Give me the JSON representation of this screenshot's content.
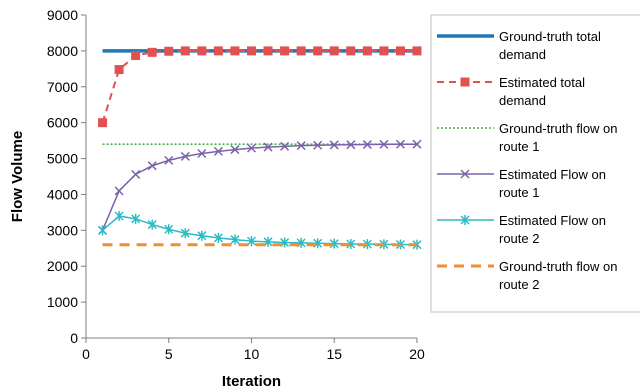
{
  "chart_data": {
    "type": "line",
    "title": "",
    "xlabel": "Iteration",
    "ylabel": "Flow Volume",
    "xlim": [
      0,
      20
    ],
    "ylim": [
      0,
      9000
    ],
    "xticks": [
      0,
      5,
      10,
      15,
      20
    ],
    "yticks": [
      0,
      1000,
      2000,
      3000,
      4000,
      5000,
      6000,
      7000,
      8000,
      9000
    ],
    "grid": false,
    "legend_position": "right",
    "x": [
      1,
      2,
      3,
      4,
      5,
      6,
      7,
      8,
      9,
      10,
      11,
      12,
      13,
      14,
      15,
      16,
      17,
      18,
      19,
      20
    ],
    "series": [
      {
        "name": "Ground-truth total demand",
        "legend_lines": [
          "Ground-truth total",
          "demand"
        ],
        "color": "#1f77b4",
        "style": "solid-thick",
        "marker": "none",
        "values": [
          8000,
          8000,
          8000,
          8000,
          8000,
          8000,
          8000,
          8000,
          8000,
          8000,
          8000,
          8000,
          8000,
          8000,
          8000,
          8000,
          8000,
          8000,
          8000,
          8000
        ]
      },
      {
        "name": "Estimated total demand",
        "legend_lines": [
          "Estimated total",
          "demand"
        ],
        "color": "#e05252",
        "style": "dashed",
        "marker": "square",
        "values": [
          6000,
          7480,
          7870,
          7960,
          7990,
          8000,
          8000,
          8000,
          8000,
          8000,
          8000,
          8000,
          8000,
          8000,
          8000,
          8000,
          8000,
          8000,
          8000,
          8000
        ]
      },
      {
        "name": "Ground-truth flow on route 1",
        "legend_lines": [
          "Ground-truth flow on",
          "route 1"
        ],
        "color": "#4caf50",
        "style": "dotted",
        "marker": "none",
        "values": [
          5400,
          5400,
          5400,
          5400,
          5400,
          5400,
          5400,
          5400,
          5400,
          5400,
          5400,
          5400,
          5400,
          5400,
          5400,
          5400,
          5400,
          5400,
          5400,
          5400
        ]
      },
      {
        "name": "Estimated Flow on route 1",
        "legend_lines": [
          "Estimated Flow on",
          "route 1"
        ],
        "color": "#7b62a8",
        "style": "solid",
        "marker": "x",
        "values": [
          3000,
          4100,
          4560,
          4800,
          4950,
          5060,
          5140,
          5200,
          5250,
          5290,
          5320,
          5340,
          5360,
          5370,
          5380,
          5385,
          5390,
          5395,
          5398,
          5400
        ]
      },
      {
        "name": "Estimated Flow on route 2",
        "legend_lines": [
          "Estimated Flow on",
          "route 2"
        ],
        "color": "#2bbbc4",
        "style": "solid",
        "marker": "star",
        "values": [
          3000,
          3400,
          3320,
          3160,
          3030,
          2920,
          2850,
          2790,
          2740,
          2700,
          2680,
          2660,
          2650,
          2640,
          2630,
          2620,
          2615,
          2610,
          2605,
          2600
        ]
      },
      {
        "name": "Ground-truth flow on route 2",
        "legend_lines": [
          "Ground-truth flow on",
          "route 2"
        ],
        "color": "#f28e2b",
        "style": "dashed-thick",
        "marker": "none",
        "values": [
          2600,
          2600,
          2600,
          2600,
          2600,
          2600,
          2600,
          2600,
          2600,
          2600,
          2600,
          2600,
          2600,
          2600,
          2600,
          2600,
          2600,
          2600,
          2600,
          2600
        ]
      }
    ]
  }
}
